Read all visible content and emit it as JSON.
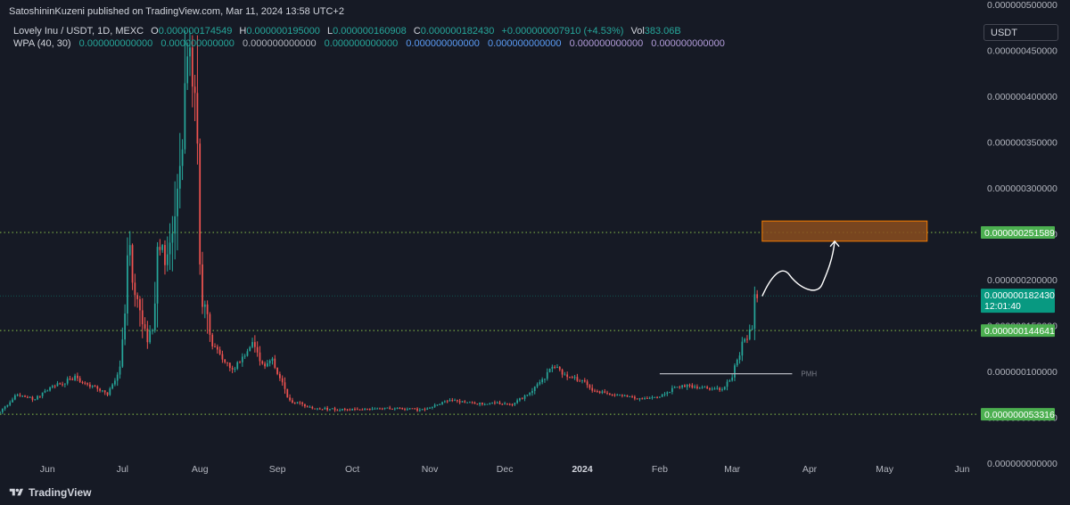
{
  "header": {
    "publisher_line": "SatoshininKuzeni published on TradingView.com, Mar 11, 2024 13:58 UTC+2",
    "symbol_line": "Lovely Inu / USDT, 1D, MEXC",
    "ohlc": {
      "o_label": "O",
      "o_value": "0.000000174549",
      "h_label": "H",
      "h_value": "0.000000195000",
      "l_label": "L",
      "l_value": "0.000000160908",
      "c_label": "C",
      "c_value": "0.000000182430",
      "change": "+0.000000007910 (+4.53%)",
      "vol_label": "Vol",
      "vol_value": "383.06B"
    },
    "indicator_line_label": "WPA (40, 30)",
    "indicator_values": [
      "0.000000000000",
      "0.000000000000",
      "0.000000000000",
      "0.000000000000",
      "0.000000000000",
      "0.000000000000",
      "0.000000000000",
      "0.000000000000"
    ],
    "indicator_colors": [
      "#26A69A",
      "#26A69A",
      "#B2B5BE",
      "#26A69A",
      "#5B9CF6",
      "#5B9CF6",
      "#B39DDB",
      "#B39DDB"
    ]
  },
  "currency_selector": "USDT",
  "footer": {
    "brand": "TradingView"
  },
  "colors": {
    "background": "#161A25",
    "up": "#26A69A",
    "down": "#EF5350",
    "level_line": "#8BC34A",
    "price_label_green": "#4CAF50",
    "last_price": "#089981",
    "target_box_fill": "#8A4E1F",
    "target_box_border": "#F57C00",
    "axis_text": "#B2B5BE"
  },
  "chart_data": {
    "type": "candlestick",
    "scale": "linear",
    "grid": false,
    "ylim": [
      0.0,
      5.05e-07
    ],
    "y_ticks": [
      {
        "value": 0.0,
        "label": "0.000000000000"
      },
      {
        "value": 5e-08,
        "label": "0.000000050000"
      },
      {
        "value": 1e-07,
        "label": "0.000000100000"
      },
      {
        "value": 1.5e-07,
        "label": "0.000000150000"
      },
      {
        "value": 2e-07,
        "label": "0.000000200000"
      },
      {
        "value": 2.5e-07,
        "label": "0.000000250000"
      },
      {
        "value": 3e-07,
        "label": "0.000000300000"
      },
      {
        "value": 3.5e-07,
        "label": "0.000000350000"
      },
      {
        "value": 4e-07,
        "label": "0.000000400000"
      },
      {
        "value": 4.5e-07,
        "label": "0.000000450000"
      },
      {
        "value": 5e-07,
        "label": "0.000000500000"
      }
    ],
    "x_ticks": [
      {
        "date": "2023-06-01",
        "label": "Jun"
      },
      {
        "date": "2023-07-01",
        "label": "Jul"
      },
      {
        "date": "2023-08-01",
        "label": "Aug"
      },
      {
        "date": "2023-09-01",
        "label": "Sep"
      },
      {
        "date": "2023-10-01",
        "label": "Oct"
      },
      {
        "date": "2023-11-01",
        "label": "Nov"
      },
      {
        "date": "2023-12-01",
        "label": "Dec"
      },
      {
        "date": "2024-01-01",
        "label": "2024",
        "bold": true
      },
      {
        "date": "2024-02-01",
        "label": "Feb"
      },
      {
        "date": "2024-03-01",
        "label": "Mar"
      },
      {
        "date": "2024-04-01",
        "label": "Apr"
      },
      {
        "date": "2024-05-01",
        "label": "May"
      },
      {
        "date": "2024-06-01",
        "label": "Jun"
      }
    ],
    "x_range": [
      "2023-05-13",
      "2024-06-06"
    ],
    "price_path": [
      [
        "2023-05-13",
        5.5e-08
      ],
      [
        "2023-05-20",
        7.5e-08
      ],
      [
        "2023-05-27",
        7e-08
      ],
      [
        "2023-06-04",
        8.5e-08
      ],
      [
        "2023-06-12",
        9.3e-08
      ],
      [
        "2023-06-20",
        8.2e-08
      ],
      [
        "2023-06-25",
        7.5e-08
      ],
      [
        "2023-06-30",
        1.05e-07
      ],
      [
        "2023-07-02",
        1.7e-07
      ],
      [
        "2023-07-03",
        2.45e-07
      ],
      [
        "2023-07-05",
        2.1e-07
      ],
      [
        "2023-07-08",
        1.6e-07
      ],
      [
        "2023-07-11",
        1.35e-07
      ],
      [
        "2023-07-13",
        1.45e-07
      ],
      [
        "2023-07-15",
        2.4e-07
      ],
      [
        "2023-07-18",
        2.2e-07
      ],
      [
        "2023-07-21",
        2.7e-07
      ],
      [
        "2023-07-23",
        3.1e-07
      ],
      [
        "2023-07-25",
        3.6e-07
      ],
      [
        "2023-07-27",
        4.4e-07
      ],
      [
        "2023-07-28",
        4.7e-07
      ],
      [
        "2023-07-30",
        4e-07
      ],
      [
        "2023-07-31",
        3.4e-07
      ],
      [
        "2023-08-01",
        2.4e-07
      ],
      [
        "2023-08-02",
        1.8e-07
      ],
      [
        "2023-08-06",
        1.3e-07
      ],
      [
        "2023-08-10",
        1.15e-07
      ],
      [
        "2023-08-14",
        1e-07
      ],
      [
        "2023-08-18",
        1.15e-07
      ],
      [
        "2023-08-22",
        1.3e-07
      ],
      [
        "2023-08-26",
        1.05e-07
      ],
      [
        "2023-08-30",
        1.15e-07
      ],
      [
        "2023-09-01",
        1e-07
      ],
      [
        "2023-09-06",
        6.8e-08
      ],
      [
        "2023-09-15",
        6e-08
      ],
      [
        "2023-09-30",
        5.8e-08
      ],
      [
        "2023-10-15",
        6e-08
      ],
      [
        "2023-10-30",
        5.8e-08
      ],
      [
        "2023-11-08",
        6.8e-08
      ],
      [
        "2023-11-20",
        6.5e-08
      ],
      [
        "2023-12-05",
        6.5e-08
      ],
      [
        "2023-12-12",
        8e-08
      ],
      [
        "2023-12-16",
        9e-08
      ],
      [
        "2023-12-20",
        1.08e-07
      ],
      [
        "2023-12-25",
        9.5e-08
      ],
      [
        "2024-01-02",
        9e-08
      ],
      [
        "2024-01-05",
        7.8e-08
      ],
      [
        "2024-01-15",
        7.5e-08
      ],
      [
        "2024-01-25",
        7e-08
      ],
      [
        "2024-02-01",
        7.2e-08
      ],
      [
        "2024-02-07",
        8.2e-08
      ],
      [
        "2024-02-12",
        8.5e-08
      ],
      [
        "2024-02-18",
        8.2e-08
      ],
      [
        "2024-02-26",
        8e-08
      ],
      [
        "2024-03-01",
        9.5e-08
      ],
      [
        "2024-03-03",
        1.1e-07
      ],
      [
        "2024-03-05",
        1.3e-07
      ],
      [
        "2024-03-07",
        1.38e-07
      ],
      [
        "2024-03-09",
        1.45e-07
      ],
      [
        "2024-03-10",
        1.75e-07
      ],
      [
        "2024-03-11",
        1.8243e-07
      ]
    ],
    "horizontal_levels": [
      {
        "value": 2.51589e-07,
        "label": "0.000000251589",
        "style": "dotted"
      },
      {
        "value": 1.44641e-07,
        "label": "0.000000144641",
        "style": "dotted"
      },
      {
        "value": 5.3316e-08,
        "label": "0.000000053316",
        "style": "dotted"
      }
    ],
    "last_price": {
      "value": 1.8243e-07,
      "label": "0.000000182430",
      "countdown": "12:01:40"
    },
    "pmh_line": {
      "value": 9.75e-08,
      "from": "2024-02-01",
      "to": "2024-03-25",
      "label": "PMH"
    },
    "target_zone": {
      "from": "2024-03-13",
      "to": "2024-05-18",
      "low": 2.42e-07,
      "high": 2.64e-07
    },
    "projection_arrow": {
      "from": {
        "date": "2024-03-13",
        "value": 1.82e-07
      },
      "via": [
        {
          "date": "2024-03-24",
          "value": 2.05e-07
        },
        {
          "date": "2024-04-06",
          "value": 1.95e-07
        }
      ],
      "to": {
        "date": "2024-04-11",
        "value": 2.42e-07
      }
    }
  }
}
